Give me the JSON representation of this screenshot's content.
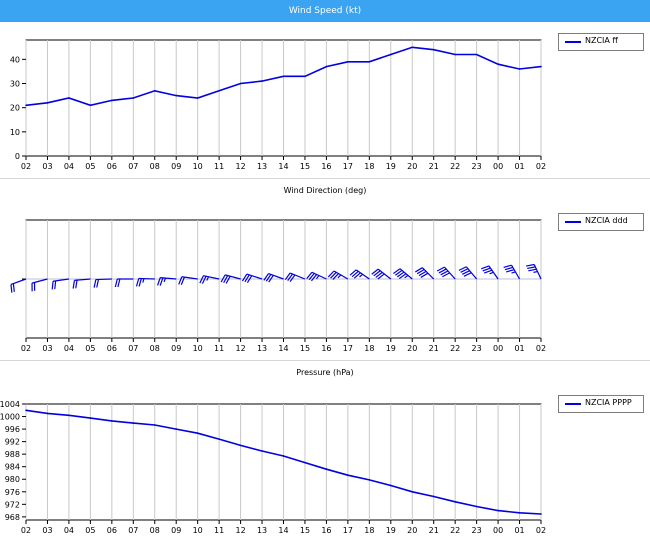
{
  "window": {
    "title": "Wind Speed  (kt)"
  },
  "panels": [
    {
      "id": "speed",
      "title": "",
      "legend": "NZCIA ff"
    },
    {
      "id": "direction",
      "title": "Wind Direction  (deg)",
      "legend": "NZCIA ddd"
    },
    {
      "id": "pressure",
      "title": "Pressure  (hPa)",
      "legend": "NZCIA PPPP"
    }
  ],
  "colors": {
    "series": "#0000e0",
    "title_bar": "#3aa3f2",
    "grid": "#c8c8c8",
    "zero_line": "#bcbcd8"
  },
  "chart_data": [
    {
      "type": "line",
      "title": "Wind Speed  (kt)",
      "x": [
        "02",
        "03",
        "04",
        "05",
        "06",
        "07",
        "08",
        "09",
        "10",
        "11",
        "12",
        "13",
        "14",
        "15",
        "16",
        "17",
        "18",
        "19",
        "20",
        "21",
        "22",
        "23",
        "00",
        "01",
        "02"
      ],
      "ylim": [
        0,
        48
      ],
      "yticks": [
        0,
        10,
        20,
        30,
        40
      ],
      "series": [
        {
          "name": "NZCIA ff",
          "values": [
            21,
            22,
            24,
            21,
            23,
            24,
            27,
            25,
            24,
            27,
            30,
            31,
            33,
            33,
            37,
            39,
            39,
            42,
            45,
            44,
            42,
            42,
            38,
            36,
            37
          ]
        }
      ],
      "grid": true,
      "legend_position": "right"
    },
    {
      "type": "scatter",
      "title": "Wind Direction  (deg)",
      "x": [
        "02",
        "03",
        "04",
        "05",
        "06",
        "07",
        "08",
        "09",
        "10",
        "11",
        "12",
        "13",
        "14",
        "15",
        "16",
        "17",
        "18",
        "19",
        "20",
        "21",
        "22",
        "23",
        "00",
        "01",
        "02"
      ],
      "series": [
        {
          "name": "NZCIA ddd",
          "values": [
            250,
            255,
            262,
            265,
            268,
            270,
            272,
            275,
            278,
            282,
            285,
            288,
            290,
            292,
            295,
            300,
            305,
            308,
            310,
            315,
            318,
            320,
            325,
            330,
            335
          ]
        }
      ],
      "grid": true,
      "legend_position": "right"
    },
    {
      "type": "line",
      "title": "Pressure  (hPa)",
      "x": [
        "02",
        "03",
        "04",
        "05",
        "06",
        "07",
        "08",
        "09",
        "10",
        "11",
        "12",
        "13",
        "14",
        "15",
        "16",
        "17",
        "18",
        "19",
        "20",
        "21",
        "22",
        "23",
        "00",
        "01",
        "02"
      ],
      "ylim": [
        967,
        1004
      ],
      "yticks": [
        968,
        972,
        976,
        980,
        984,
        988,
        992,
        996,
        1000,
        1004
      ],
      "series": [
        {
          "name": "NZCIA PPPP",
          "values": [
            1002,
            1001,
            1000.4,
            999.5,
            998.6,
            997.9,
            997.3,
            996,
            994.7,
            992.8,
            990.8,
            989,
            987.4,
            985.3,
            983.2,
            981.3,
            979.8,
            978,
            976,
            974.5,
            972.8,
            971.3,
            970,
            969.3,
            968.9
          ]
        }
      ],
      "grid": true,
      "legend_position": "right"
    }
  ]
}
